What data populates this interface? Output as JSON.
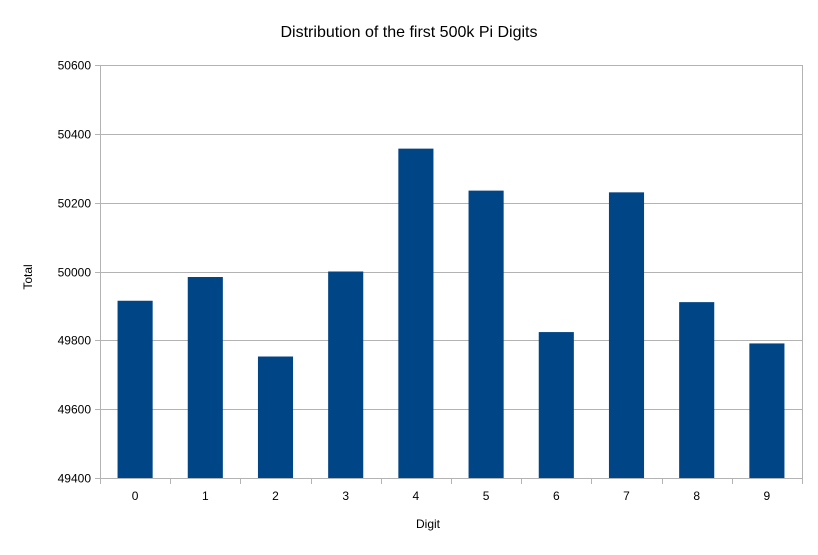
{
  "chart_data": {
    "type": "bar",
    "title": "Distribution of the first 500k Pi Digits",
    "xlabel": "Digit",
    "ylabel": "Total",
    "categories": [
      "0",
      "1",
      "2",
      "3",
      "4",
      "5",
      "6",
      "7",
      "8",
      "9"
    ],
    "values": [
      49915,
      49984,
      49753,
      50000,
      50357,
      50235,
      49824,
      50230,
      49911,
      49791
    ],
    "ylim": [
      49400,
      50600
    ],
    "yticks": [
      49400,
      49600,
      49800,
      50000,
      50200,
      50400,
      50600
    ],
    "ytick_labels": [
      "49400",
      "49600",
      "49800",
      "50000",
      "50200",
      "50400",
      "50600"
    ],
    "grid": "horizontal",
    "legend": "none",
    "colors": {
      "bar": "#004586",
      "grid": "#b3b3b3",
      "axis": "#b3b3b3"
    }
  }
}
